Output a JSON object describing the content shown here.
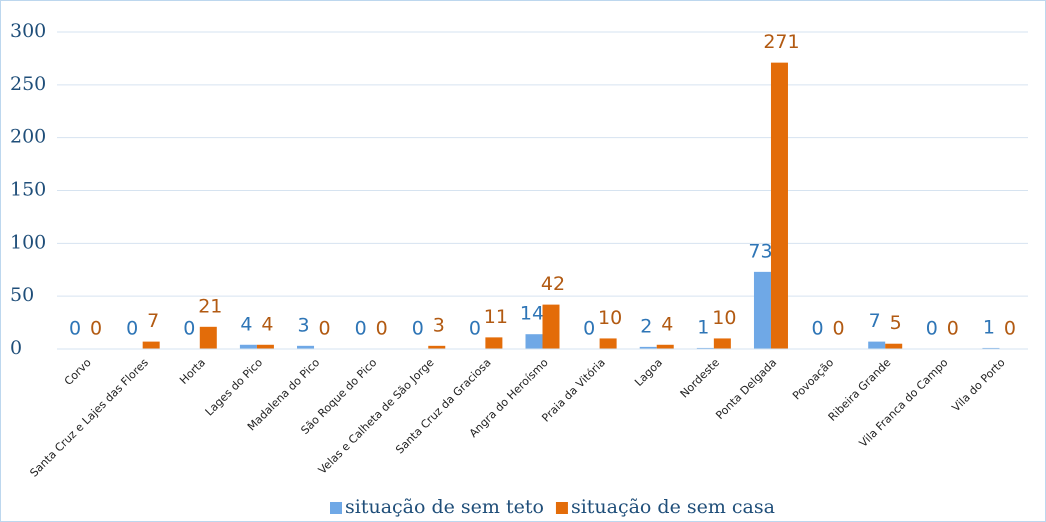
{
  "chart_data": {
    "type": "bar",
    "categories": [
      "Corvo",
      "Santa Cruz e Lajes das Flores",
      "Horta",
      "Lages do Pico",
      "Madalena do Pico",
      "São Roque do Pico",
      "Velas e Calheta de São Jorge",
      "Santa Cruz da Graciosa",
      "Angra do Heroísmo",
      "Praia da Vitória",
      "Lagoa",
      "Nordeste",
      "Ponta Delgada",
      "Povoação",
      "Ribeira Grande",
      "Vila Franca do Campo",
      "Vila do Porto"
    ],
    "series": [
      {
        "name": "situação de sem teto",
        "color": "#6fa8e6",
        "label_color": "#2e75b6",
        "values": [
          0,
          0,
          0,
          4,
          3,
          0,
          0,
          0,
          14,
          0,
          2,
          1,
          73,
          0,
          7,
          0,
          1
        ]
      },
      {
        "name": "situação de sem casa",
        "color": "#e36c09",
        "label_color": "#b25a12",
        "values": [
          0,
          7,
          21,
          4,
          0,
          0,
          3,
          11,
          42,
          10,
          4,
          10,
          271,
          0,
          5,
          0,
          0
        ]
      }
    ],
    "ylim": [
      0,
      300
    ],
    "yticks": [
      0,
      50,
      100,
      150,
      200,
      250,
      300
    ],
    "grid": true,
    "legend": "bottom"
  }
}
